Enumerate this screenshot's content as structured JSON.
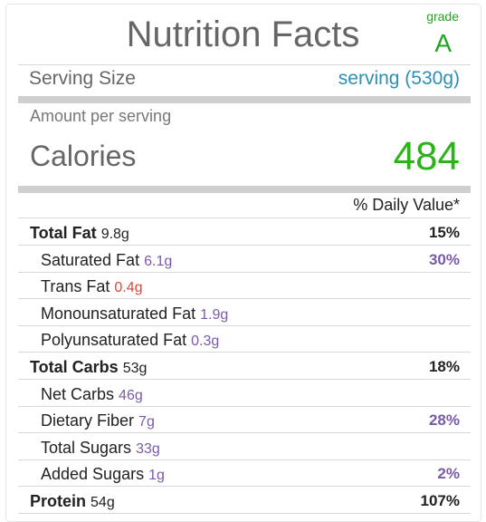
{
  "title": "Nutrition Facts",
  "grade": {
    "label": "grade",
    "value": "A"
  },
  "serving": {
    "label": "Serving Size",
    "value": "serving (530g)"
  },
  "amount_per_serving": "Amount per serving",
  "calories": {
    "label": "Calories",
    "value": "484"
  },
  "daily_value_header": "% Daily Value*",
  "colors": {
    "accent_green": "#2db31a",
    "serving_blue": "#2b8fb8",
    "amount_purple": "#7a5aa6",
    "trans_fat_red": "#e0453a"
  },
  "nutrients": [
    {
      "name": "Total Fat",
      "amount": "9.8g",
      "pct": "15%",
      "level": "main"
    },
    {
      "name": "Saturated Fat",
      "amount": "6.1g",
      "pct": "30%",
      "level": "sub"
    },
    {
      "name": "Trans Fat",
      "amount": "0.4g",
      "pct": "",
      "level": "sub"
    },
    {
      "name": "Monounsaturated Fat",
      "amount": "1.9g",
      "pct": "",
      "level": "sub"
    },
    {
      "name": "Polyunsaturated Fat",
      "amount": "0.3g",
      "pct": "",
      "level": "sub"
    },
    {
      "name": "Total Carbs",
      "amount": "53g",
      "pct": "18%",
      "level": "main"
    },
    {
      "name": "Net Carbs",
      "amount": "46g",
      "pct": "",
      "level": "sub"
    },
    {
      "name": "Dietary Fiber",
      "amount": "7g",
      "pct": "28%",
      "level": "sub"
    },
    {
      "name": "Total Sugars",
      "amount": "33g",
      "pct": "",
      "level": "sub"
    },
    {
      "name": "Added Sugars",
      "amount": "1g",
      "pct": "2%",
      "level": "sub"
    },
    {
      "name": "Protein",
      "amount": "54g",
      "pct": "107%",
      "level": "main"
    }
  ]
}
